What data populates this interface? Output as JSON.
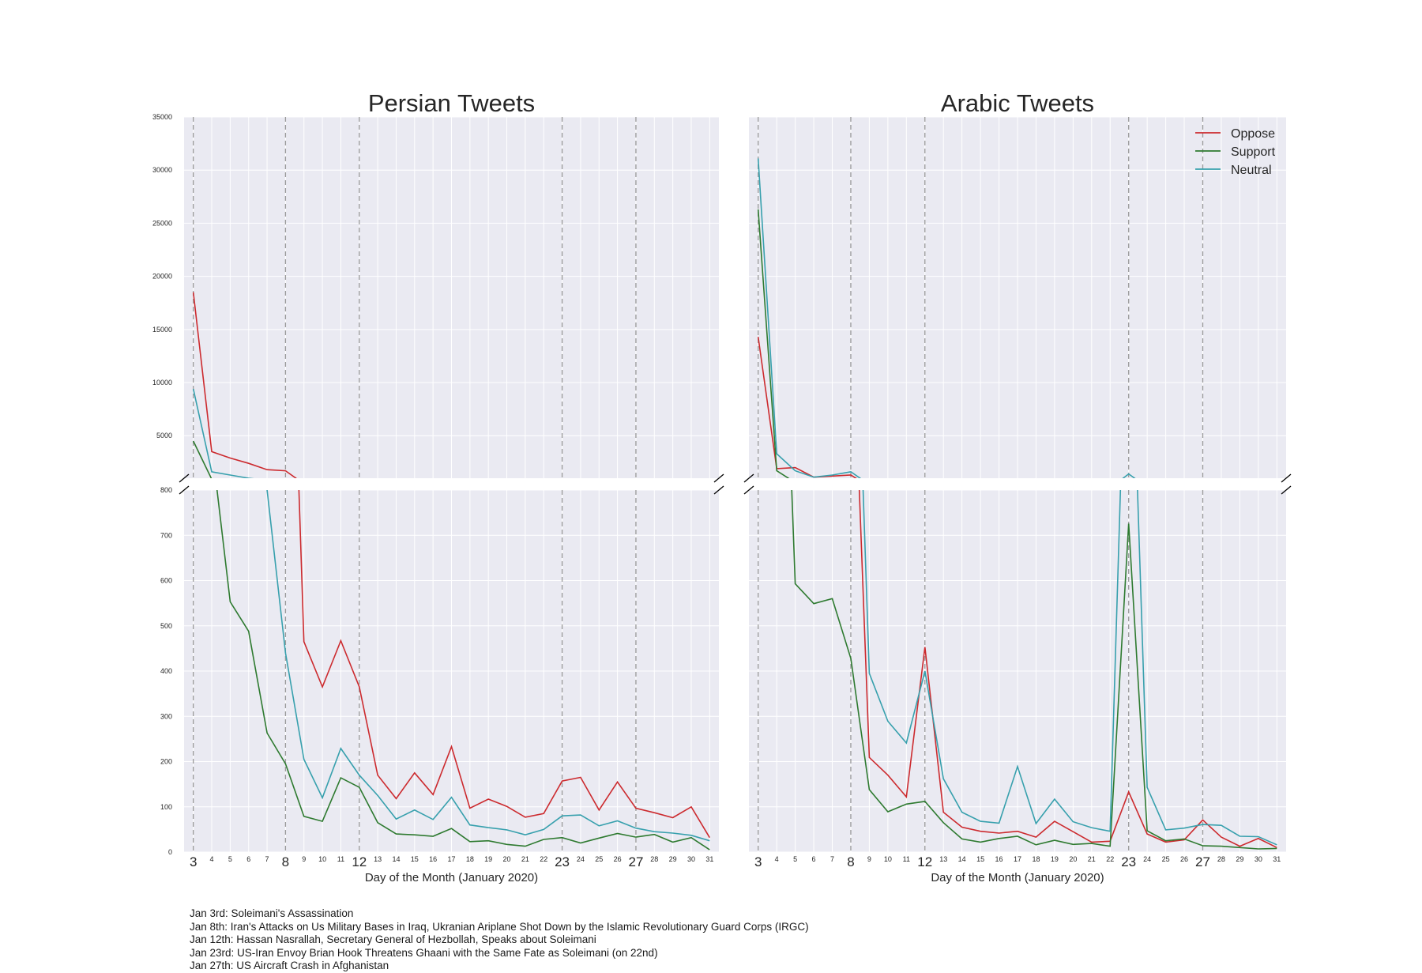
{
  "chart_data": [
    {
      "type": "line",
      "title": "Persian Tweets",
      "xlabel": "Day of the Month (January 2020)",
      "ylabel": "",
      "x": [
        3,
        4,
        5,
        6,
        7,
        8,
        9,
        10,
        11,
        12,
        13,
        14,
        15,
        16,
        17,
        18,
        19,
        20,
        21,
        22,
        23,
        24,
        25,
        26,
        27,
        28,
        29,
        30,
        31
      ],
      "xlim": [
        2.5,
        31.5
      ],
      "highlight_days": [
        3,
        8,
        12,
        23,
        27
      ],
      "broken_axis": true,
      "upper_ylim": [
        1000,
        35000
      ],
      "upper_yticks": [
        5000,
        10000,
        15000,
        20000,
        25000,
        30000,
        35000
      ],
      "lower_ylim": [
        0,
        800
      ],
      "lower_yticks": [
        0,
        100,
        200,
        300,
        400,
        500,
        600,
        700,
        800
      ],
      "grid": true,
      "series": [
        {
          "name": "Oppose",
          "color": "#cc2a2e",
          "values": [
            18500,
            3500,
            2900,
            2400,
            1800,
            1700,
            465,
            365,
            467,
            365,
            170,
            118,
            175,
            127,
            233,
            97,
            117,
            101,
            77,
            85,
            157,
            165,
            93,
            155,
            97,
            87,
            76,
            100,
            32
          ]
        },
        {
          "name": "Support",
          "color": "#2e7a30",
          "values": [
            4500,
            900,
            553,
            488,
            263,
            195,
            79,
            68,
            164,
            143,
            65,
            40,
            38,
            35,
            52,
            23,
            25,
            17,
            13,
            28,
            32,
            20,
            31,
            41,
            33,
            39,
            22,
            32,
            5
          ]
        },
        {
          "name": "Neutral",
          "color": "#37a0ad",
          "values": [
            9400,
            1600,
            1300,
            1000,
            800,
            440,
            205,
            120,
            229,
            170,
            125,
            73,
            93,
            72,
            121,
            60,
            54,
            49,
            38,
            50,
            80,
            82,
            58,
            69,
            53,
            45,
            42,
            37,
            25
          ]
        }
      ]
    },
    {
      "type": "line",
      "title": "Arabic Tweets",
      "xlabel": "Day of the Month (January 2020)",
      "ylabel": "",
      "x": [
        3,
        4,
        5,
        6,
        7,
        8,
        9,
        10,
        11,
        12,
        13,
        14,
        15,
        16,
        17,
        18,
        19,
        20,
        21,
        22,
        23,
        24,
        25,
        26,
        27,
        28,
        29,
        30,
        31
      ],
      "xlim": [
        2.5,
        31.5
      ],
      "highlight_days": [
        3,
        8,
        12,
        23,
        27
      ],
      "broken_axis": true,
      "upper_ylim": [
        1000,
        35000
      ],
      "lower_ylim": [
        0,
        800
      ],
      "grid": true,
      "legend": "top-right",
      "series": [
        {
          "name": "Oppose",
          "color": "#cc2a2e",
          "values": [
            14300,
            1900,
            2000,
            1100,
            1200,
            1300,
            209,
            170,
            122,
            453,
            88,
            55,
            46,
            42,
            46,
            33,
            68,
            45,
            22,
            24,
            133,
            40,
            22,
            27,
            71,
            33,
            13,
            30,
            10
          ]
        },
        {
          "name": "Support",
          "color": "#2e7a30",
          "values": [
            26300,
            1700,
            593,
            549,
            560,
            428,
            138,
            89,
            106,
            112,
            65,
            29,
            22,
            30,
            35,
            16,
            26,
            17,
            19,
            13,
            726,
            47,
            25,
            29,
            14,
            13,
            10,
            7,
            8
          ]
        },
        {
          "name": "Neutral",
          "color": "#37a0ad",
          "values": [
            31100,
            3300,
            1700,
            1100,
            1300,
            1600,
            395,
            289,
            241,
            400,
            162,
            88,
            68,
            64,
            189,
            63,
            117,
            67,
            54,
            46,
            1400,
            143,
            49,
            53,
            61,
            59,
            35,
            34,
            16
          ]
        }
      ]
    }
  ],
  "events": [
    "Jan 3rd: Soleimani's Assassination",
    "Jan 8th: Iran's Attacks on Us Military Bases in Iraq, Ukranian Ariplane Shot Down by the Islamic Revolutionary Guard Corps (IRGC)",
    "Jan 12th: Hassan Nasrallah, Secretary General of Hezbollah, Speaks about Soleimani",
    "Jan 23rd: US-Iran Envoy Brian Hook Threatens Ghaani with the Same Fate as Soleimani (on 22nd)",
    "Jan 27th: US Aircraft Crash in Afghanistan"
  ]
}
